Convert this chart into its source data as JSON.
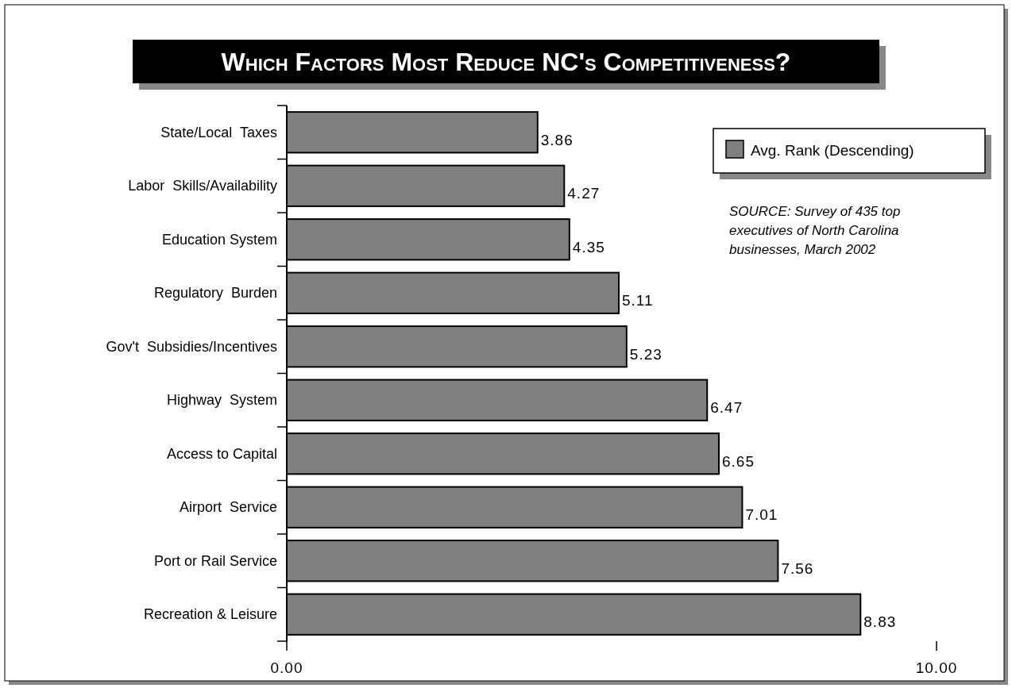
{
  "chart_data": {
    "type": "bar",
    "orientation": "horizontal",
    "title": "Which Factors Most Reduce NC's Competitiveness?",
    "categories": [
      "State/Local  Taxes",
      "Labor  Skills/Availability",
      "Education System",
      "Regulatory  Burden",
      "Gov't  Subsidies/Incentives",
      "Highway  System",
      "Access to Capital",
      "Airport  Service",
      "Port or Rail Service",
      "Recreation & Leisure"
    ],
    "series": [
      {
        "name": "Avg. Rank (Descending)",
        "color": "#808080",
        "values": [
          3.86,
          4.27,
          4.35,
          5.11,
          5.23,
          6.47,
          6.65,
          7.01,
          7.56,
          8.83
        ]
      }
    ],
    "xlim": [
      0,
      10
    ],
    "xticks": [
      {
        "value": 0,
        "label": "0.00"
      },
      {
        "value": 10,
        "label": "10.00"
      }
    ],
    "data_labels": true,
    "legend": "top right",
    "annotations": [
      "SOURCE: Survey of 435 top executives of North Carolina businesses, March 2002"
    ]
  }
}
